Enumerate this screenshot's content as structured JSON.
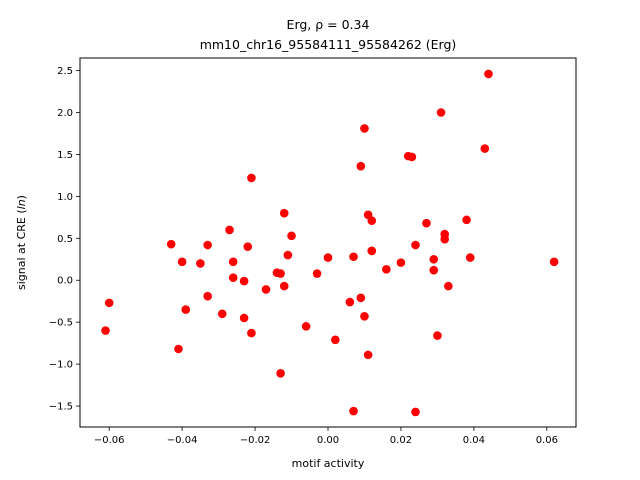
{
  "chart_data": {
    "type": "scatter",
    "title": "Erg, ρ = 0.34",
    "subtitle": "mm10_chr16_95584111_95584262 (Erg)",
    "xlabel": "motif activity",
    "ylabel": "signal at CRE (ln)",
    "ylabel_prefix": "signal at CRE (",
    "ylabel_italic": "ln",
    "ylabel_suffix": ")",
    "xlim": [
      -0.068,
      0.068
    ],
    "ylim": [
      -1.75,
      2.65
    ],
    "xticks": [
      -0.06,
      -0.04,
      -0.02,
      0.0,
      0.02,
      0.04,
      0.06
    ],
    "xtick_labels": [
      "−0.06",
      "−0.04",
      "−0.02",
      "0.00",
      "0.02",
      "0.04",
      "0.06"
    ],
    "yticks": [
      -1.5,
      -1.0,
      -0.5,
      0.0,
      0.5,
      1.0,
      1.5,
      2.0,
      2.5
    ],
    "ytick_labels": [
      "−1.5",
      "−1.0",
      "−0.5",
      "0.0",
      "0.5",
      "1.0",
      "1.5",
      "2.0",
      "2.5"
    ],
    "grid": false,
    "marker_color": "#ff0000",
    "x": [
      -0.061,
      -0.06,
      -0.043,
      -0.041,
      -0.04,
      -0.039,
      -0.035,
      -0.033,
      -0.033,
      -0.029,
      -0.027,
      -0.026,
      -0.026,
      -0.023,
      -0.023,
      -0.022,
      -0.021,
      -0.021,
      -0.017,
      -0.014,
      -0.013,
      -0.013,
      -0.012,
      -0.012,
      -0.011,
      -0.01,
      -0.006,
      -0.003,
      0.0,
      0.002,
      0.006,
      0.007,
      0.007,
      0.009,
      0.009,
      0.01,
      0.01,
      0.011,
      0.011,
      0.012,
      0.012,
      0.012,
      0.016,
      0.02,
      0.022,
      0.023,
      0.024,
      0.024,
      0.027,
      0.029,
      0.029,
      0.03,
      0.031,
      0.032,
      0.032,
      0.033,
      0.038,
      0.039,
      0.043,
      0.044,
      0.062
    ],
    "y": [
      -0.6,
      -0.27,
      0.43,
      -0.82,
      0.22,
      -0.35,
      0.2,
      0.42,
      -0.19,
      -0.4,
      0.6,
      0.22,
      0.03,
      -0.01,
      -0.45,
      0.4,
      1.22,
      -0.63,
      -0.11,
      0.09,
      0.08,
      -1.11,
      -0.07,
      0.8,
      0.3,
      0.53,
      -0.55,
      0.08,
      0.27,
      -0.71,
      -0.26,
      0.28,
      -1.56,
      1.36,
      -0.21,
      -0.43,
      1.81,
      0.78,
      -0.89,
      0.71,
      0.35,
      0.35,
      0.13,
      0.21,
      1.48,
      1.47,
      0.42,
      -1.57,
      0.68,
      0.25,
      0.12,
      -0.66,
      2.0,
      0.55,
      0.49,
      -0.07,
      0.72,
      0.27,
      1.57,
      2.46,
      0.22
    ]
  }
}
